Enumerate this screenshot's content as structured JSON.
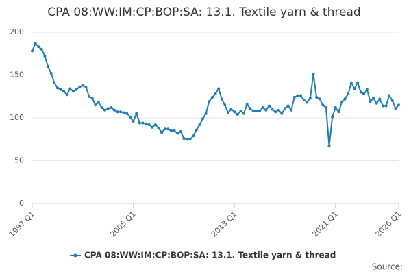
{
  "chart_data": {
    "type": "line",
    "title": "CPA 08:WW:IM:CP:BOP:SA: 13.1. Textile yarn & thread",
    "source": "Source:",
    "categories": [
      "1997 Q1",
      null,
      null,
      null,
      null,
      null,
      null,
      null,
      null,
      null,
      null,
      null,
      null,
      null,
      null,
      null,
      null,
      null,
      null,
      null,
      null,
      null,
      null,
      null,
      null,
      null,
      null,
      null,
      null,
      null,
      null,
      null,
      "2005 Q1",
      null,
      null,
      null,
      null,
      null,
      null,
      null,
      null,
      null,
      null,
      null,
      null,
      null,
      null,
      null,
      null,
      null,
      null,
      null,
      null,
      null,
      null,
      null,
      null,
      null,
      null,
      null,
      null,
      null,
      null,
      null,
      "2013 Q1",
      null,
      null,
      null,
      null,
      null,
      null,
      null,
      null,
      null,
      null,
      null,
      null,
      null,
      null,
      null,
      null,
      null,
      null,
      null,
      null,
      null,
      null,
      null,
      null,
      null,
      null,
      null,
      null,
      null,
      null,
      null,
      "2021 Q1",
      null,
      null,
      null,
      null,
      null,
      null,
      null,
      null,
      null,
      null,
      null,
      null,
      null,
      null,
      null,
      null,
      null,
      null,
      null,
      "2026 Q1"
    ],
    "series": [
      {
        "name": "CPA 08:WW:IM:CP:BOP:SA: 13.1. Textile yarn & thread",
        "color": "#1f7cb9",
        "values": [
          178,
          187,
          183,
          180,
          172,
          160,
          152,
          141,
          135,
          133,
          131,
          127,
          134,
          131,
          133,
          136,
          138,
          136,
          125,
          123,
          115,
          118,
          112,
          109,
          111,
          112,
          109,
          107,
          107,
          106,
          105,
          101,
          96,
          105,
          94,
          94,
          93,
          92,
          89,
          92,
          88,
          83,
          87,
          87,
          85,
          85,
          82,
          84,
          76,
          75,
          75,
          79,
          86,
          92,
          99,
          105,
          119,
          124,
          128,
          134,
          122,
          115,
          106,
          110,
          107,
          104,
          108,
          105,
          116,
          111,
          108,
          108,
          108,
          112,
          109,
          114,
          110,
          107,
          109,
          105,
          111,
          114,
          109,
          124,
          126,
          126,
          121,
          118,
          123,
          151,
          124,
          122,
          115,
          112,
          67,
          101,
          112,
          107,
          118,
          122,
          128,
          141,
          134,
          141,
          130,
          128,
          133,
          119,
          123,
          117,
          122,
          114,
          114,
          126,
          120,
          111,
          115
        ]
      }
    ],
    "ylim": [
      0,
      200
    ],
    "yticks": [
      0,
      50,
      100,
      150,
      200
    ],
    "grid": true
  }
}
